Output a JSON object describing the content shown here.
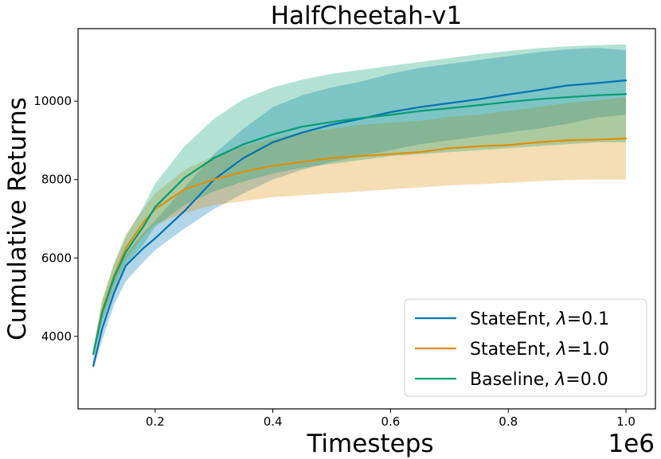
{
  "chart_data": {
    "type": "line",
    "title": "HalfCheetah-v1",
    "xlabel": "Timesteps",
    "ylabel": "Cumulative Returns",
    "x_offset_label": "1e6",
    "xlim": [
      0.069,
      1.05
    ],
    "ylim": [
      2150,
      11850
    ],
    "xticks": [
      0.2,
      0.4,
      0.6,
      0.8,
      1.0
    ],
    "xtick_labels": [
      "0.2",
      "0.4",
      "0.6",
      "0.8",
      "1.0"
    ],
    "yticks": [
      4000,
      6000,
      8000,
      10000
    ],
    "ytick_labels": [
      "4000",
      "6000",
      "8000",
      "10000"
    ],
    "legend_position": "lower-right",
    "x": [
      0.095,
      0.11,
      0.13,
      0.15,
      0.18,
      0.2,
      0.25,
      0.3,
      0.35,
      0.4,
      0.45,
      0.5,
      0.55,
      0.6,
      0.65,
      0.7,
      0.75,
      0.8,
      0.85,
      0.9,
      0.95,
      1.0
    ],
    "series": [
      {
        "name": "StateEnt, λ=0.1",
        "label_prefix": "StateEnt, ",
        "label_lambda": "λ",
        "label_value": "=0.1",
        "color": "#0173b2",
        "mean": [
          3250,
          4200,
          5100,
          5800,
          6250,
          6500,
          7200,
          8000,
          8550,
          8950,
          9200,
          9400,
          9550,
          9720,
          9850,
          9950,
          10050,
          10170,
          10280,
          10400,
          10460,
          10530
        ],
        "lower": [
          3150,
          3900,
          4800,
          5400,
          5900,
          6200,
          6750,
          7250,
          7650,
          8000,
          8250,
          8450,
          8600,
          8750,
          8900,
          9000,
          9100,
          9200,
          9300,
          9420,
          9580,
          9650
        ],
        "upper": [
          3400,
          4500,
          5450,
          6100,
          6650,
          6950,
          7800,
          8650,
          9300,
          9850,
          10150,
          10350,
          10500,
          10700,
          10850,
          10950,
          11050,
          11150,
          11250,
          11320,
          11360,
          11300
        ]
      },
      {
        "name": "StateEnt, λ=1.0",
        "label_prefix": "StateEnt, ",
        "label_lambda": "λ",
        "label_value": "=1.0",
        "color": "#de8f05",
        "mean": [
          3550,
          4650,
          5550,
          6250,
          6900,
          7250,
          7750,
          8000,
          8200,
          8350,
          8450,
          8550,
          8600,
          8650,
          8700,
          8800,
          8850,
          8880,
          8950,
          9000,
          9020,
          9050
        ],
        "lower": [
          3450,
          4400,
          5300,
          5950,
          6550,
          6850,
          7150,
          7350,
          7450,
          7550,
          7600,
          7650,
          7700,
          7750,
          7800,
          7850,
          7880,
          7920,
          7960,
          7990,
          8000,
          8000
        ],
        "upper": [
          3700,
          4950,
          5850,
          6600,
          7250,
          7650,
          8250,
          8600,
          8850,
          9050,
          9200,
          9300,
          9400,
          9450,
          9500,
          9600,
          9650,
          9750,
          9850,
          9950,
          10020,
          10100
        ]
      },
      {
        "name": "Baseline, λ=0.0",
        "label_prefix": "Baseline, ",
        "label_lambda": "λ",
        "label_value": "=0.0",
        "color": "#029e73",
        "mean": [
          3550,
          4600,
          5500,
          6150,
          6800,
          7300,
          8050,
          8550,
          8900,
          9150,
          9350,
          9470,
          9570,
          9650,
          9750,
          9820,
          9900,
          9980,
          10050,
          10100,
          10150,
          10180
        ],
        "lower": [
          3450,
          4350,
          5150,
          5800,
          6350,
          6800,
          7350,
          7700,
          7950,
          8150,
          8300,
          8400,
          8500,
          8600,
          8650,
          8700,
          8750,
          8800,
          8850,
          8900,
          8950,
          8950
        ],
        "upper": [
          3700,
          4900,
          5850,
          6550,
          7300,
          7900,
          8850,
          9550,
          10050,
          10350,
          10550,
          10700,
          10800,
          10900,
          11000,
          11100,
          11200,
          11280,
          11350,
          11400,
          11430,
          11450
        ]
      }
    ]
  }
}
